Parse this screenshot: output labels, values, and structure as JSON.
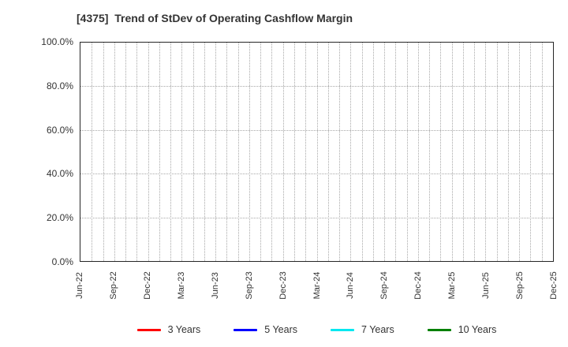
{
  "colors": {
    "background": "#ffffff",
    "frame": "#262626",
    "grid": "#a8a8a8",
    "text": "#333333"
  },
  "chart_data": {
    "type": "line",
    "title": "[4375]  Trend of StDev of Operating Cashflow Margin",
    "xlabel": "",
    "ylabel": "",
    "categories": [
      "Jun-22",
      "Sep-22",
      "Dec-22",
      "Mar-23",
      "Jun-23",
      "Sep-23",
      "Dec-23",
      "Mar-24",
      "Jun-24",
      "Sep-24",
      "Dec-24",
      "Mar-25",
      "Jun-25",
      "Sep-25",
      "Dec-25"
    ],
    "x_minor_gridlines_per_interval": 3,
    "y_ticks": [
      "100.0%",
      "80.0%",
      "60.0%",
      "40.0%",
      "20.0%",
      "0.0%"
    ],
    "ylim": [
      0,
      100
    ],
    "grid": true,
    "legend_position": "bottom",
    "series": [
      {
        "name": "3 Years",
        "color": "#ff0000",
        "values": []
      },
      {
        "name": "5 Years",
        "color": "#0000ff",
        "values": []
      },
      {
        "name": "7 Years",
        "color": "#00e8f0",
        "values": []
      },
      {
        "name": "10 Years",
        "color": "#008000",
        "values": []
      }
    ]
  }
}
